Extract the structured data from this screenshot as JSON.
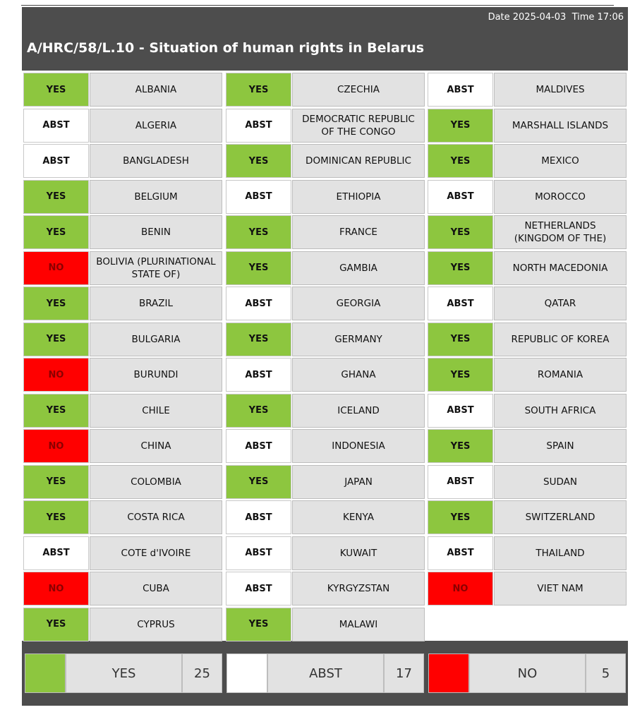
{
  "header": {
    "datetime": "Date 2025-04-03  Time 17:06",
    "title": "A/HRC/58/L.10 - Situation of human rights in Belarus"
  },
  "columns": [
    [
      {
        "vote": "YES",
        "country": "ALBANIA"
      },
      {
        "vote": "ABST",
        "country": "ALGERIA"
      },
      {
        "vote": "ABST",
        "country": "BANGLADESH"
      },
      {
        "vote": "YES",
        "country": "BELGIUM"
      },
      {
        "vote": "YES",
        "country": "BENIN"
      },
      {
        "vote": "NO",
        "country": "BOLIVIA (PLURINATIONAL STATE OF)"
      },
      {
        "vote": "YES",
        "country": "BRAZIL"
      },
      {
        "vote": "YES",
        "country": "BULGARIA"
      },
      {
        "vote": "NO",
        "country": "BURUNDI"
      },
      {
        "vote": "YES",
        "country": "CHILE"
      },
      {
        "vote": "NO",
        "country": "CHINA"
      },
      {
        "vote": "YES",
        "country": "COLOMBIA"
      },
      {
        "vote": "YES",
        "country": "COSTA RICA"
      },
      {
        "vote": "ABST",
        "country": "COTE d'IVOIRE"
      },
      {
        "vote": "NO",
        "country": "CUBA"
      },
      {
        "vote": "YES",
        "country": "CYPRUS"
      }
    ],
    [
      {
        "vote": "YES",
        "country": "CZECHIA"
      },
      {
        "vote": "ABST",
        "country": "DEMOCRATIC REPUBLIC OF THE CONGO"
      },
      {
        "vote": "YES",
        "country": "DOMINICAN REPUBLIC"
      },
      {
        "vote": "ABST",
        "country": "ETHIOPIA"
      },
      {
        "vote": "YES",
        "country": "FRANCE"
      },
      {
        "vote": "YES",
        "country": "GAMBIA"
      },
      {
        "vote": "ABST",
        "country": "GEORGIA"
      },
      {
        "vote": "YES",
        "country": "GERMANY"
      },
      {
        "vote": "ABST",
        "country": "GHANA"
      },
      {
        "vote": "YES",
        "country": "ICELAND"
      },
      {
        "vote": "ABST",
        "country": "INDONESIA"
      },
      {
        "vote": "YES",
        "country": "JAPAN"
      },
      {
        "vote": "ABST",
        "country": "KENYA"
      },
      {
        "vote": "ABST",
        "country": "KUWAIT"
      },
      {
        "vote": "ABST",
        "country": "KYRGYZSTAN"
      },
      {
        "vote": "YES",
        "country": "MALAWI"
      }
    ],
    [
      {
        "vote": "ABST",
        "country": "MALDIVES"
      },
      {
        "vote": "YES",
        "country": "MARSHALL ISLANDS"
      },
      {
        "vote": "YES",
        "country": "MEXICO"
      },
      {
        "vote": "ABST",
        "country": "MOROCCO"
      },
      {
        "vote": "YES",
        "country": "NETHERLANDS (KINGDOM OF THE)"
      },
      {
        "vote": "YES",
        "country": "NORTH MACEDONIA"
      },
      {
        "vote": "ABST",
        "country": "QATAR"
      },
      {
        "vote": "YES",
        "country": "REPUBLIC OF KOREA"
      },
      {
        "vote": "YES",
        "country": "ROMANIA"
      },
      {
        "vote": "ABST",
        "country": "SOUTH AFRICA"
      },
      {
        "vote": "YES",
        "country": "SPAIN"
      },
      {
        "vote": "ABST",
        "country": "SUDAN"
      },
      {
        "vote": "YES",
        "country": "SWITZERLAND"
      },
      {
        "vote": "ABST",
        "country": "THAILAND"
      },
      {
        "vote": "NO",
        "country": "VIET NAM"
      }
    ]
  ],
  "summary": [
    {
      "label": "YES",
      "count": 25,
      "color": "#8dc63f"
    },
    {
      "label": "ABST",
      "count": 17,
      "color": "#ffffff"
    },
    {
      "label": "NO",
      "count": 5,
      "color": "#ff0000"
    }
  ]
}
